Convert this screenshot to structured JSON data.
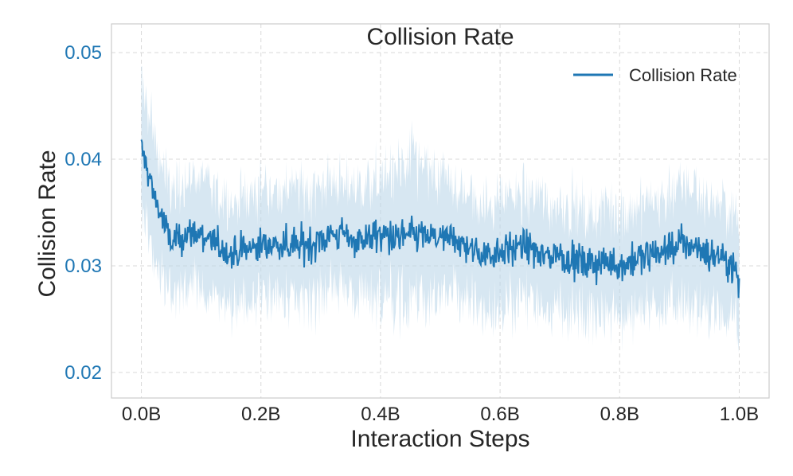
{
  "chart_data": {
    "type": "line",
    "title": "Collision Rate",
    "xlabel": "Interaction Steps",
    "ylabel": "Collision Rate",
    "xlim": [
      -0.05,
      1.05
    ],
    "ylim": [
      0.0176,
      0.0527
    ],
    "xticks": [
      0.0,
      0.2,
      0.4,
      0.6,
      0.8,
      1.0
    ],
    "xtick_labels": [
      "0.0B",
      "0.2B",
      "0.4B",
      "0.6B",
      "0.8B",
      "1.0B"
    ],
    "yticks": [
      0.02,
      0.03,
      0.04,
      0.05
    ],
    "ytick_labels": [
      "0.02",
      "0.03",
      "0.04",
      "0.05"
    ],
    "grid": true,
    "legend_position": "top-right",
    "colors": {
      "line": "#1f77b4",
      "band": "#bcd7ea",
      "ylabel": "#1f77b4"
    },
    "series": [
      {
        "name": "Collision Rate",
        "x": [
          0.0,
          0.025,
          0.05,
          0.075,
          0.1,
          0.125,
          0.15,
          0.175,
          0.2,
          0.225,
          0.25,
          0.275,
          0.3,
          0.325,
          0.35,
          0.375,
          0.4,
          0.425,
          0.45,
          0.475,
          0.5,
          0.525,
          0.55,
          0.575,
          0.6,
          0.625,
          0.65,
          0.675,
          0.7,
          0.725,
          0.75,
          0.775,
          0.8,
          0.825,
          0.85,
          0.875,
          0.9,
          0.925,
          0.95,
          0.975,
          1.0
        ],
        "y": [
          0.041,
          0.036,
          0.032,
          0.033,
          0.033,
          0.032,
          0.031,
          0.0315,
          0.032,
          0.032,
          0.032,
          0.032,
          0.0325,
          0.033,
          0.0325,
          0.0325,
          0.033,
          0.0325,
          0.033,
          0.0328,
          0.0325,
          0.0325,
          0.0315,
          0.031,
          0.0315,
          0.0318,
          0.0315,
          0.031,
          0.031,
          0.0305,
          0.03,
          0.0305,
          0.03,
          0.0305,
          0.031,
          0.0315,
          0.032,
          0.032,
          0.031,
          0.031,
          0.029
        ],
        "band_half_width": [
          0.006,
          0.0055,
          0.005,
          0.005,
          0.005,
          0.005,
          0.005,
          0.005,
          0.005,
          0.005,
          0.005,
          0.005,
          0.005,
          0.005,
          0.005,
          0.005,
          0.0055,
          0.006,
          0.0065,
          0.006,
          0.0055,
          0.005,
          0.005,
          0.005,
          0.005,
          0.005,
          0.005,
          0.005,
          0.005,
          0.005,
          0.005,
          0.005,
          0.005,
          0.005,
          0.005,
          0.005,
          0.0055,
          0.0055,
          0.005,
          0.005,
          0.0045
        ]
      }
    ]
  }
}
